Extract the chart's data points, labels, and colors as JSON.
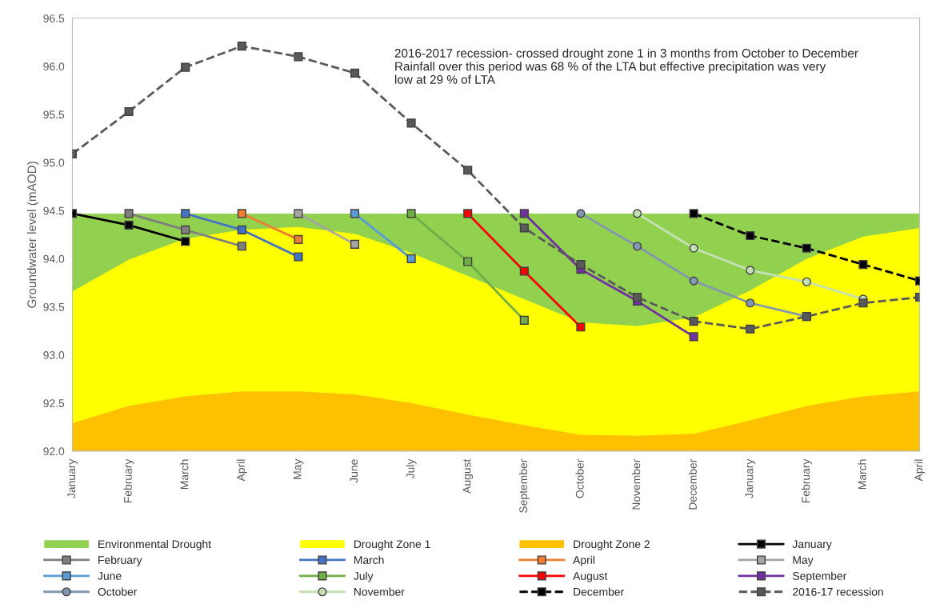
{
  "chart_data": {
    "type": "line",
    "ylabel": "Groundwater level (mAOD)",
    "categories": [
      "January",
      "February",
      "March",
      "April",
      "May",
      "June",
      "July",
      "August",
      "September",
      "October",
      "November",
      "December",
      "January",
      "February",
      "March",
      "April"
    ],
    "ylim": [
      92.0,
      96.5
    ],
    "yticks": [
      {
        "value": 92.0,
        "label": "92.0"
      },
      {
        "value": 92.5,
        "label": "92.5"
      },
      {
        "value": 93.0,
        "label": "93.0"
      },
      {
        "value": 93.5,
        "label": "93.5"
      },
      {
        "value": 94.0,
        "label": "94.0"
      },
      {
        "value": 94.5,
        "label": "94.5"
      },
      {
        "value": 95.0,
        "label": "95.0"
      },
      {
        "value": 95.5,
        "label": "95.5"
      },
      {
        "value": 96.0,
        "label": "96.0"
      },
      {
        "value": 96.5,
        "label": "96.5"
      }
    ],
    "legend": "bottom",
    "annotations": [
      "2016-2017 recession- crossed drought zone 1 in 3 months from October to December\nRainfall over this period was 68 % of the LTA but effective precipitation was very\nlow at 29 % of LTA"
    ],
    "series": [
      {
        "name": "Environmental Drought",
        "type": "area",
        "color": "#92d050",
        "values": [
          94.47,
          94.47,
          94.47,
          94.47,
          94.47,
          94.47,
          94.47,
          94.47,
          94.47,
          94.47,
          94.47,
          94.47,
          94.47,
          94.47,
          94.47,
          94.47
        ]
      },
      {
        "name": "Drought Zone 1",
        "type": "area",
        "color": "#ffff00",
        "values": [
          93.66,
          93.99,
          94.21,
          94.3,
          94.33,
          94.26,
          94.06,
          93.82,
          93.58,
          93.34,
          93.3,
          93.39,
          93.67,
          94.0,
          94.23,
          94.32
        ]
      },
      {
        "name": "Drought Zone 2",
        "type": "area",
        "color": "#ffc000",
        "values": [
          92.29,
          92.47,
          92.57,
          92.62,
          92.62,
          92.59,
          92.5,
          92.38,
          92.27,
          92.17,
          92.16,
          92.18,
          92.32,
          92.47,
          92.57,
          92.62
        ]
      },
      {
        "name": "January",
        "color": "#000000",
        "marker": "square",
        "values": [
          94.47,
          94.35,
          94.18,
          null,
          null,
          null,
          null,
          null,
          null,
          null,
          null,
          null,
          null,
          null,
          null,
          null
        ]
      },
      {
        "name": "February",
        "color": "#7f7f7f",
        "marker": "square",
        "values": [
          null,
          94.47,
          94.3,
          94.13,
          null,
          null,
          null,
          null,
          null,
          null,
          null,
          null,
          null,
          null,
          null,
          null
        ]
      },
      {
        "name": "March",
        "color": "#4472c4",
        "marker": "square",
        "values": [
          null,
          null,
          94.47,
          94.3,
          94.02,
          null,
          null,
          null,
          null,
          null,
          null,
          null,
          null,
          null,
          null,
          null
        ]
      },
      {
        "name": "April",
        "color": "#ed7d31",
        "marker": "square",
        "values": [
          null,
          null,
          null,
          94.47,
          94.2,
          null,
          null,
          null,
          null,
          null,
          null,
          null,
          null,
          null,
          null,
          null
        ]
      },
      {
        "name": "May",
        "color": "#a5a5a5",
        "marker": "square",
        "values": [
          null,
          null,
          null,
          null,
          94.47,
          94.15,
          null,
          null,
          null,
          null,
          null,
          null,
          null,
          null,
          null,
          null
        ]
      },
      {
        "name": "June",
        "color": "#5b9bd5",
        "marker": "square",
        "values": [
          null,
          null,
          null,
          null,
          null,
          94.47,
          94.0,
          null,
          null,
          null,
          null,
          null,
          null,
          null,
          null,
          null
        ]
      },
      {
        "name": "July",
        "color": "#70ad47",
        "marker": "square",
        "values": [
          null,
          null,
          null,
          null,
          null,
          null,
          94.47,
          93.97,
          93.36,
          null,
          null,
          null,
          null,
          null,
          null,
          null
        ]
      },
      {
        "name": "August",
        "color": "#ff0000",
        "marker": "square",
        "values": [
          null,
          null,
          null,
          null,
          null,
          null,
          null,
          94.47,
          93.87,
          93.29,
          null,
          null,
          null,
          null,
          null,
          null
        ]
      },
      {
        "name": "September",
        "color": "#7030a0",
        "marker": "square",
        "values": [
          null,
          null,
          null,
          null,
          null,
          null,
          null,
          null,
          94.47,
          93.89,
          93.56,
          93.19,
          null,
          null,
          null,
          null
        ]
      },
      {
        "name": "October",
        "color": "#8497b0",
        "marker": "circle",
        "values": [
          null,
          null,
          null,
          null,
          null,
          null,
          null,
          null,
          null,
          94.47,
          94.13,
          93.77,
          93.54,
          93.4,
          null,
          null
        ]
      },
      {
        "name": "November",
        "color": "#c5e0b4",
        "marker": "circle",
        "values": [
          null,
          null,
          null,
          null,
          null,
          null,
          null,
          null,
          null,
          null,
          94.47,
          94.11,
          93.88,
          93.76,
          93.58,
          null
        ]
      },
      {
        "name": "December",
        "color": "#000000",
        "marker": "square",
        "line_style": "dashed",
        "values": [
          null,
          null,
          null,
          null,
          null,
          null,
          null,
          null,
          null,
          null,
          null,
          94.47,
          94.24,
          94.11,
          93.94,
          93.77
        ]
      },
      {
        "name": "2016-17 recession",
        "color": "#595959",
        "marker": "square",
        "line_style": "dashed",
        "values": [
          95.09,
          95.53,
          95.99,
          96.21,
          96.1,
          95.93,
          95.41,
          94.92,
          94.32,
          93.94,
          93.6,
          93.35,
          93.27,
          93.4,
          93.54,
          93.6
        ]
      }
    ]
  }
}
